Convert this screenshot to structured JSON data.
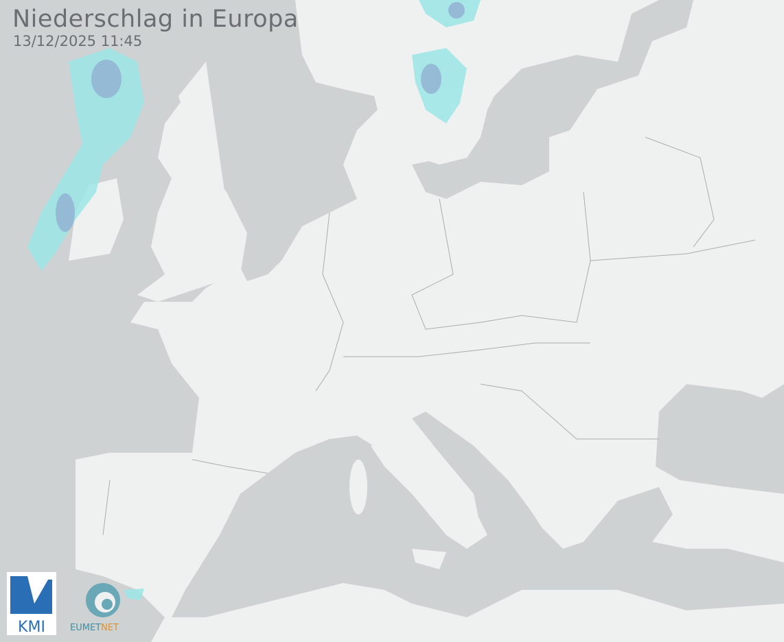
{
  "map": {
    "title": "Niederschlag in Europa",
    "timestamp": "13/12/2025 11:45",
    "logos": {
      "kmi": "KMI",
      "eumetnet_parts": [
        "EUMET",
        "NET"
      ]
    }
  }
}
